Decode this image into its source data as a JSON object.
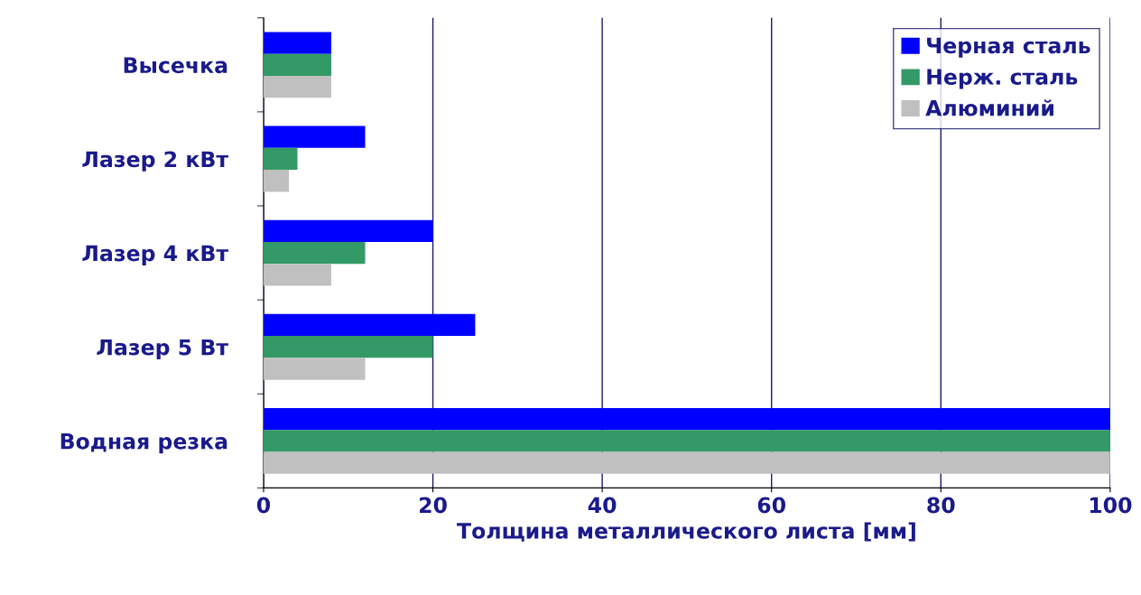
{
  "chart_data": {
    "type": "bar",
    "orientation": "horizontal",
    "xlabel": "Толщина металлического листа [мм]",
    "categories": [
      "Высечка",
      "Лазер 2 кВт",
      "Лазер 4 кВт",
      "Лазер 5 Вт",
      "Водная резка"
    ],
    "series": [
      {
        "name": "Черная сталь",
        "color": "#0000ff",
        "values": [
          8,
          12,
          20,
          25,
          100
        ]
      },
      {
        "name": "Нерж. сталь",
        "color": "#339966",
        "values": [
          8,
          4,
          12,
          20,
          100
        ]
      },
      {
        "name": "Алюминий",
        "color": "#c0c0c0",
        "values": [
          8,
          3,
          8,
          12,
          100
        ]
      }
    ],
    "xlim": [
      0,
      100
    ],
    "xticks": [
      0,
      20,
      40,
      60,
      80,
      100
    ],
    "grid": "x",
    "legend": "top right"
  }
}
